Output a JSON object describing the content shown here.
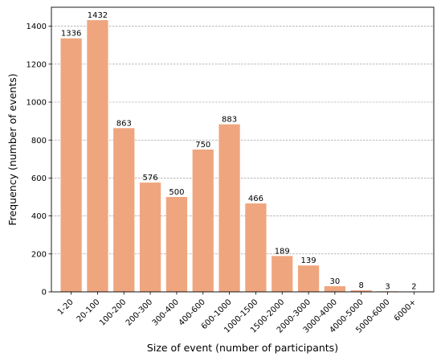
{
  "chart_data": {
    "type": "bar",
    "title": "",
    "xlabel": "Size of event (number of participants)",
    "ylabel": "Frequency (number of events)",
    "categories": [
      "1-20",
      "20-100",
      "100-200",
      "200-300",
      "300-400",
      "400-600",
      "600-1000",
      "1000-1500",
      "1500-2000",
      "2000-3000",
      "3000-4000",
      "4000-5000",
      "5000-6000",
      "6000+"
    ],
    "values": [
      1336,
      1432,
      863,
      576,
      500,
      750,
      883,
      466,
      189,
      139,
      30,
      8,
      3,
      2
    ],
    "data_labels": [
      "1336",
      "1432",
      "863",
      "576",
      "500",
      "750",
      "883",
      "466",
      "189",
      "139",
      "30",
      "8",
      "3",
      "2"
    ],
    "ylim": [
      0,
      1500
    ],
    "y_ticks": [
      0,
      200,
      400,
      600,
      800,
      1000,
      1200,
      1400
    ],
    "y_tick_labels": [
      "0",
      "200",
      "400",
      "600",
      "800",
      "1000",
      "1200",
      "1400"
    ],
    "grid": true,
    "grid_axis": "y",
    "bar_color": "#efa67f"
  }
}
